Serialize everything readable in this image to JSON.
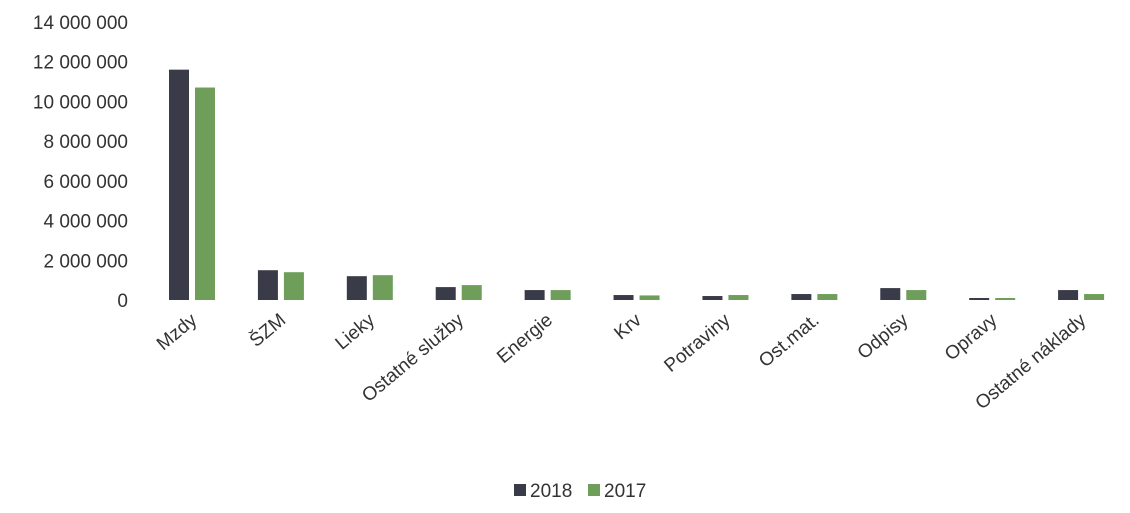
{
  "chart_data": {
    "type": "bar",
    "title": "",
    "xlabel": "",
    "ylabel": "",
    "ylim": [
      0,
      14000000
    ],
    "yticks": [
      0,
      2000000,
      4000000,
      6000000,
      8000000,
      10000000,
      12000000,
      14000000
    ],
    "ytick_labels": [
      "0",
      "2 000 000",
      "4 000 000",
      "6 000 000",
      "8 000 000",
      "10 000 000",
      "12 000 000",
      "14 000 000"
    ],
    "grid": false,
    "legend_position": "bottom",
    "categories": [
      "Mzdy",
      "ŠZM",
      "Lieky",
      "Ostatné služby",
      "Energie",
      "Krv",
      "Potraviny",
      "Ost.mat.",
      "Odpisy",
      "Opravy",
      "Ostatné náklady"
    ],
    "series": [
      {
        "name": "2018",
        "color": "#3a3b48",
        "values": [
          11600000,
          1500000,
          1200000,
          650000,
          500000,
          250000,
          200000,
          300000,
          600000,
          80000,
          500000
        ]
      },
      {
        "name": "2017",
        "color": "#6e9e5a",
        "values": [
          10700000,
          1400000,
          1250000,
          750000,
          500000,
          230000,
          250000,
          300000,
          500000,
          70000,
          300000
        ]
      }
    ]
  }
}
